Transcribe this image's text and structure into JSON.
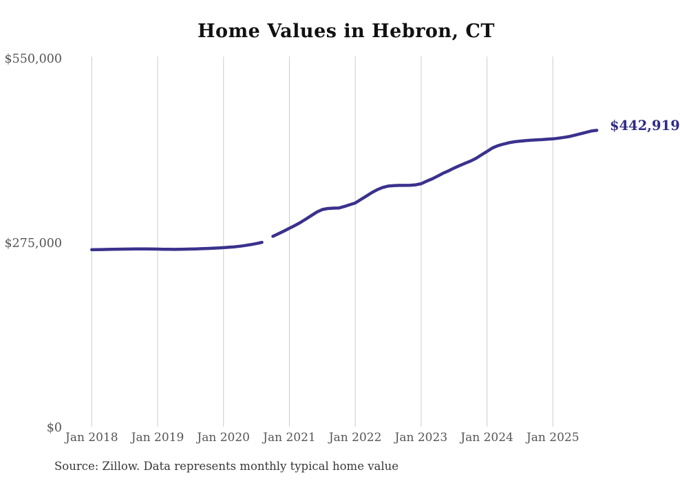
{
  "title": "Home Values in Hebron, CT",
  "source_note": "Source: Zillow. Data represents monthly typical home value",
  "end_label": "$442,919",
  "colors": {
    "line": "#3a328c",
    "end_label_text": "#2f2b87",
    "grid": "#cccccc",
    "tick_text": "#555555",
    "title_text": "#111111",
    "source_text": "#383838",
    "background": "#ffffff"
  },
  "chart_data": {
    "type": "line",
    "title": "Home Values in Hebron, CT",
    "xlabel": "",
    "ylabel": "",
    "x_unit": "month",
    "x_start": "2018-01",
    "x_end": "2025-09",
    "ylim": [
      0,
      550000
    ],
    "grid": "vertical-only",
    "legend_position": "none",
    "gap_note": "line break (missing data) around Sep 2020",
    "final_value": 442919,
    "x_ticks": {
      "labels": [
        "Jan 2018",
        "Jan 2019",
        "Jan 2020",
        "Jan 2021",
        "Jan 2022",
        "Jan 2023",
        "Jan 2024",
        "Jan 2025"
      ],
      "month_indices": [
        0,
        12,
        24,
        36,
        48,
        60,
        72,
        84
      ]
    },
    "y_ticks": [
      {
        "label": "$550,000",
        "value": 550000
      },
      {
        "label": "$275,000",
        "value": 275000
      },
      {
        "label": "$0",
        "value": 0
      }
    ],
    "series": [
      {
        "name": "Monthly typical home value",
        "values": [
          264800,
          265000,
          265200,
          265400,
          265500,
          265700,
          265800,
          265900,
          266000,
          266000,
          266000,
          265900,
          265800,
          265600,
          265500,
          265400,
          265500,
          265700,
          265900,
          266100,
          266400,
          266700,
          267000,
          267400,
          267900,
          268500,
          269200,
          270100,
          271200,
          272500,
          274100,
          275800,
          null,
          284900,
          288600,
          292600,
          296800,
          301000,
          305400,
          310500,
          315700,
          321000,
          324800,
          326300,
          326800,
          327000,
          329300,
          331900,
          334500,
          339600,
          344700,
          349900,
          354300,
          357700,
          359800,
          360500,
          360800,
          360800,
          360900,
          361600,
          363200,
          367000,
          370400,
          374500,
          378900,
          382400,
          386500,
          390200,
          393700,
          397000,
          401100,
          406300,
          411400,
          416600,
          420000,
          422400,
          424400,
          425800,
          426800,
          427500,
          428200,
          428700,
          429000,
          429600,
          430200,
          431200,
          432300,
          433600,
          435700,
          437700,
          439800,
          441800,
          442919
        ]
      }
    ]
  }
}
